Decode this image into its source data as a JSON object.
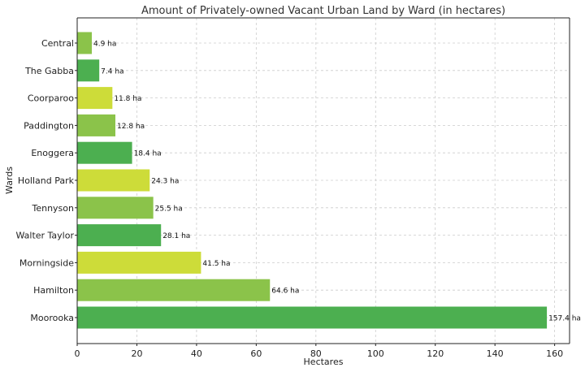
{
  "chart_data": {
    "type": "bar",
    "orientation": "horizontal",
    "title": "Amount of Privately-owned Vacant Urban Land by Ward (in hectares)",
    "xlabel": "Hectares",
    "ylabel": "Wards",
    "xlim": [
      0,
      165
    ],
    "xticks": [
      0,
      20,
      40,
      60,
      80,
      100,
      120,
      140,
      160
    ],
    "grid": true,
    "categories": [
      "Central",
      "The Gabba",
      "Coorparoo",
      "Paddington",
      "Enoggera",
      "Holland Park",
      "Tennyson",
      "Walter Taylor",
      "Morningside",
      "Hamilton",
      "Moorooka"
    ],
    "values": [
      4.9,
      7.4,
      11.8,
      12.8,
      18.4,
      24.3,
      25.5,
      28.1,
      41.5,
      64.6,
      157.4
    ],
    "data_labels": [
      "4.9 ha",
      "7.4 ha",
      "11.8 ha",
      "12.8 ha",
      "18.4 ha",
      "24.3 ha",
      "25.5 ha",
      "28.1 ha",
      "41.5 ha",
      "64.6 ha",
      "157.4 ha"
    ],
    "colors": [
      "#8bc34a",
      "#4caf50",
      "#cddc39",
      "#8bc34a",
      "#4caf50",
      "#cddc39",
      "#8bc34a",
      "#4caf50",
      "#cddc39",
      "#8bc34a",
      "#4caf50"
    ]
  }
}
